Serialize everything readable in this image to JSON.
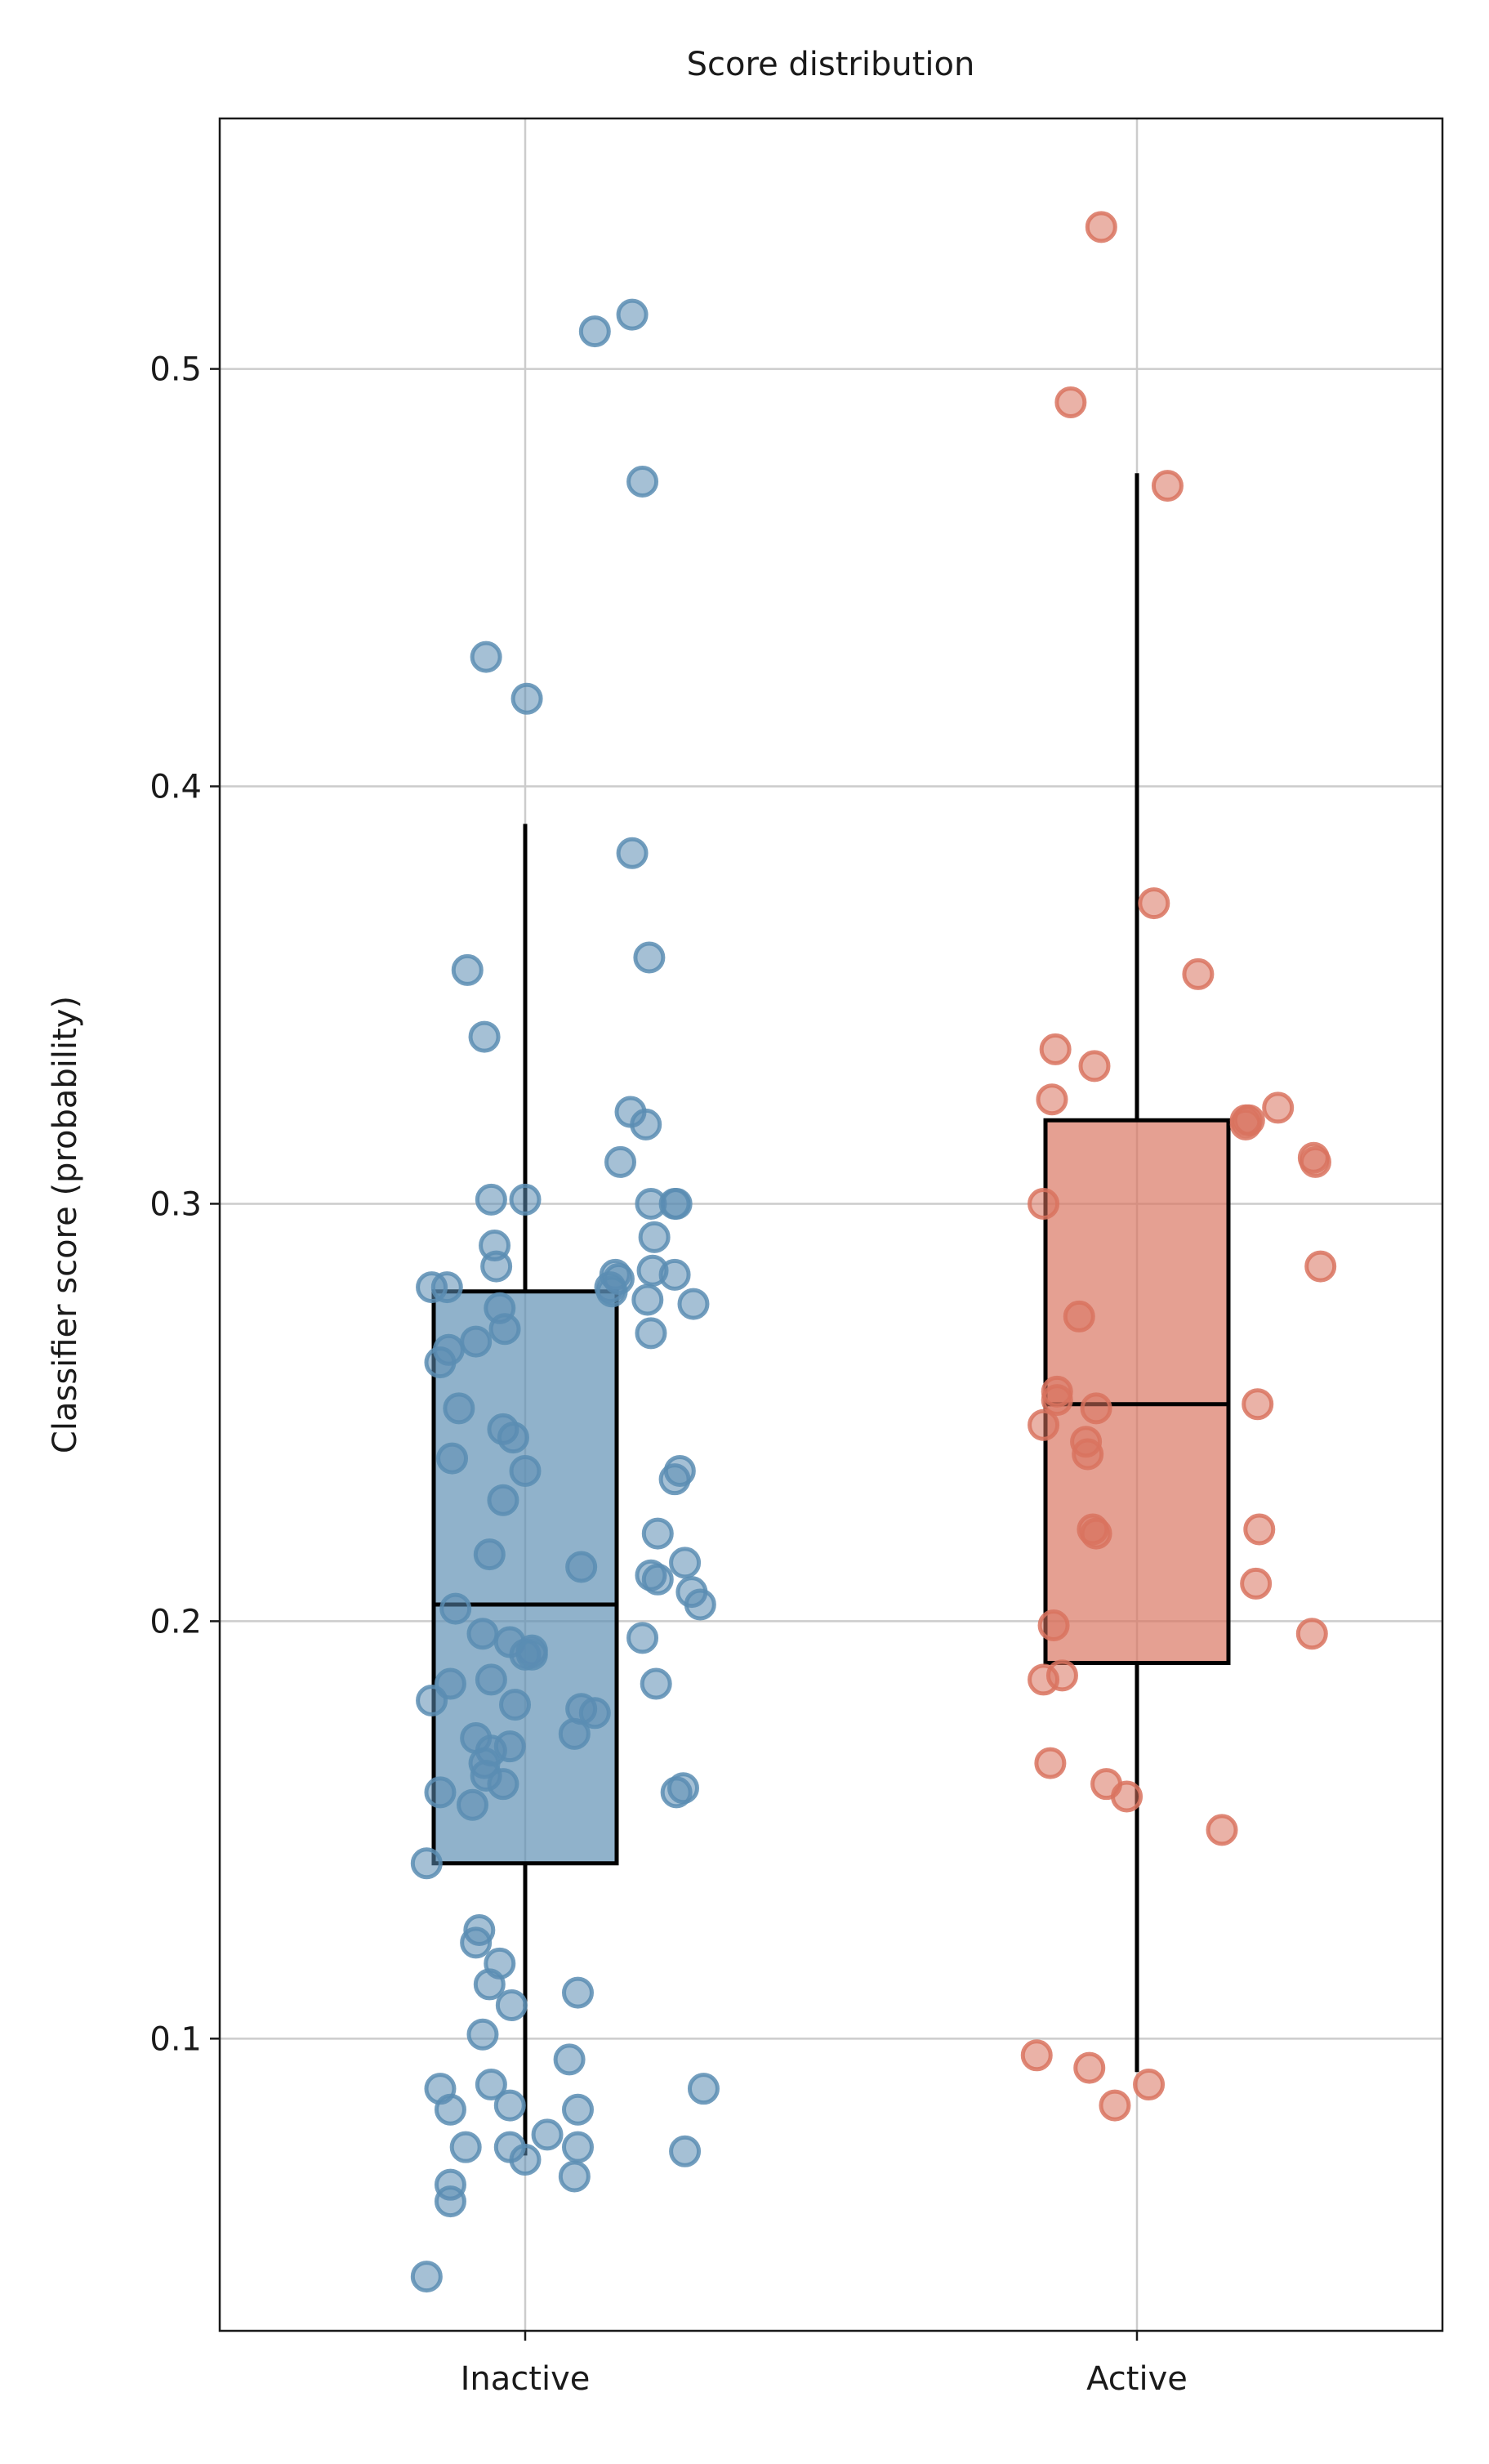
{
  "chart_data": {
    "type": "box",
    "title": "Score distribution",
    "xlabel": "",
    "ylabel": "Classifier score (probability)",
    "ylim": [
      0.03,
      0.56
    ],
    "yticks": [
      0.1,
      0.2,
      0.3,
      0.4,
      0.5
    ],
    "ytick_labels": [
      "0.1",
      "0.2",
      "0.3",
      "0.4",
      "0.5"
    ],
    "categories": [
      "Inactive",
      "Active"
    ],
    "grid": true,
    "legend": "none",
    "groups": [
      {
        "label": "Inactive",
        "color": "#5b8db3",
        "box": {
          "whisker_low": 0.072,
          "q1": 0.142,
          "median": 0.204,
          "q3": 0.279,
          "whisker_high": 0.391
        },
        "points": [
          [
            0.41,
            0.509
          ],
          [
            0.63,
            0.513
          ],
          [
            0.69,
            0.473
          ],
          [
            -0.23,
            0.431
          ],
          [
            0.01,
            0.421
          ],
          [
            0.63,
            0.384
          ],
          [
            0.73,
            0.359
          ],
          [
            -0.34,
            0.356
          ],
          [
            -0.24,
            0.34
          ],
          [
            0.62,
            0.322
          ],
          [
            0.71,
            0.319
          ],
          [
            0.56,
            0.31
          ],
          [
            -0.2,
            0.301
          ],
          [
            0.0,
            0.301
          ],
          [
            0.74,
            0.3
          ],
          [
            0.89,
            0.3
          ],
          [
            0.88,
            0.3
          ],
          [
            0.76,
            0.292
          ],
          [
            -0.18,
            0.29
          ],
          [
            -0.17,
            0.285
          ],
          [
            0.88,
            0.283
          ],
          [
            0.75,
            0.284
          ],
          [
            0.53,
            0.283
          ],
          [
            0.55,
            0.282
          ],
          [
            -0.55,
            0.28
          ],
          [
            -0.46,
            0.28
          ],
          [
            0.5,
            0.28
          ],
          [
            0.51,
            0.279
          ],
          [
            0.72,
            0.277
          ],
          [
            0.99,
            0.276
          ],
          [
            -0.15,
            0.275
          ],
          [
            -0.12,
            0.27
          ],
          [
            0.74,
            0.269
          ],
          [
            -0.29,
            0.267
          ],
          [
            -0.45,
            0.265
          ],
          [
            -0.5,
            0.262
          ],
          [
            -0.39,
            0.251
          ],
          [
            -0.13,
            0.246
          ],
          [
            -0.07,
            0.244
          ],
          [
            -0.43,
            0.239
          ],
          [
            0.0,
            0.236
          ],
          [
            0.88,
            0.234
          ],
          [
            0.91,
            0.236
          ],
          [
            -0.13,
            0.229
          ],
          [
            0.78,
            0.221
          ],
          [
            -0.21,
            0.216
          ],
          [
            0.94,
            0.214
          ],
          [
            0.33,
            0.213
          ],
          [
            0.74,
            0.211
          ],
          [
            0.78,
            0.21
          ],
          [
            0.98,
            0.207
          ],
          [
            1.03,
            0.204
          ],
          [
            -0.41,
            0.203
          ],
          [
            -0.25,
            0.197
          ],
          [
            0.69,
            0.196
          ],
          [
            -0.09,
            0.195
          ],
          [
            0.04,
            0.193
          ],
          [
            0.0,
            0.192
          ],
          [
            0.04,
            0.192
          ],
          [
            -0.2,
            0.186
          ],
          [
            -0.44,
            0.185
          ],
          [
            0.77,
            0.185
          ],
          [
            -0.55,
            0.181
          ],
          [
            -0.06,
            0.18
          ],
          [
            0.33,
            0.179
          ],
          [
            0.41,
            0.178
          ],
          [
            0.29,
            0.173
          ],
          [
            -0.29,
            0.172
          ],
          [
            -0.2,
            0.169
          ],
          [
            -0.09,
            0.17
          ],
          [
            -0.24,
            0.166
          ],
          [
            -0.23,
            0.163
          ],
          [
            0.89,
            0.159
          ],
          [
            0.93,
            0.16
          ],
          [
            -0.5,
            0.159
          ],
          [
            -0.13,
            0.161
          ],
          [
            -0.31,
            0.156
          ],
          [
            -0.58,
            0.142
          ],
          [
            -0.27,
            0.126
          ],
          [
            -0.29,
            0.123
          ],
          [
            -0.15,
            0.118
          ],
          [
            -0.21,
            0.113
          ],
          [
            0.31,
            0.111
          ],
          [
            -0.08,
            0.108
          ],
          [
            -0.25,
            0.101
          ],
          [
            0.26,
            0.095
          ],
          [
            -0.5,
            0.088
          ],
          [
            -0.2,
            0.089
          ],
          [
            1.05,
            0.088
          ],
          [
            0.31,
            0.083
          ],
          [
            -0.44,
            0.083
          ],
          [
            -0.09,
            0.084
          ],
          [
            0.13,
            0.077
          ],
          [
            -0.35,
            0.074
          ],
          [
            -0.09,
            0.074
          ],
          [
            0.31,
            0.074
          ],
          [
            0.94,
            0.073
          ],
          [
            0.0,
            0.071
          ],
          [
            0.29,
            0.067
          ],
          [
            -0.44,
            0.065
          ],
          [
            -0.44,
            0.061
          ],
          [
            -0.58,
            0.043
          ]
        ]
      },
      {
        "label": "Active",
        "color": "#d9735f",
        "box": {
          "whisker_low": 0.092,
          "q1": 0.19,
          "median": 0.252,
          "q3": 0.32,
          "whisker_high": 0.475
        },
        "points": [
          [
            -0.21,
            0.534
          ],
          [
            -0.39,
            0.492
          ],
          [
            0.18,
            0.472
          ],
          [
            0.1,
            0.372
          ],
          [
            0.36,
            0.355
          ],
          [
            -0.48,
            0.337
          ],
          [
            -0.25,
            0.333
          ],
          [
            -0.5,
            0.325
          ],
          [
            0.83,
            0.323
          ],
          [
            0.66,
            0.32
          ],
          [
            0.64,
            0.32
          ],
          [
            0.64,
            0.319
          ],
          [
            1.04,
            0.311
          ],
          [
            1.05,
            0.31
          ],
          [
            -0.55,
            0.3
          ],
          [
            1.08,
            0.285
          ],
          [
            -0.34,
            0.273
          ],
          [
            -0.47,
            0.255
          ],
          [
            -0.47,
            0.253
          ],
          [
            0.71,
            0.252
          ],
          [
            -0.24,
            0.251
          ],
          [
            -0.55,
            0.247
          ],
          [
            -0.3,
            0.243
          ],
          [
            -0.29,
            0.24
          ],
          [
            -0.24,
            0.221
          ],
          [
            -0.26,
            0.222
          ],
          [
            0.72,
            0.222
          ],
          [
            0.7,
            0.209
          ],
          [
            -0.49,
            0.199
          ],
          [
            1.03,
            0.197
          ],
          [
            -0.44,
            0.187
          ],
          [
            -0.55,
            0.186
          ],
          [
            -0.51,
            0.166
          ],
          [
            -0.18,
            0.161
          ],
          [
            -0.06,
            0.158
          ],
          [
            0.5,
            0.15
          ],
          [
            -0.59,
            0.096
          ],
          [
            -0.28,
            0.093
          ],
          [
            -0.13,
            0.084
          ],
          [
            0.07,
            0.089
          ]
        ]
      }
    ]
  }
}
